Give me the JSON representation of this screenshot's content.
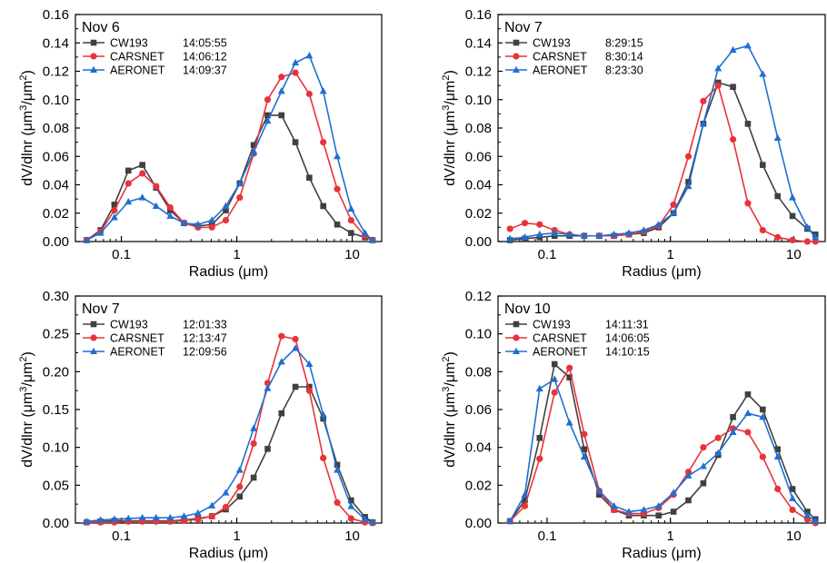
{
  "chart_data": [
    {
      "type": "line",
      "panel_label": "Nov 6",
      "xlabel": "Radius (μm)",
      "ylabel_main": "dV/dlnr (μm",
      "ylabel_sup1": "3",
      "ylabel_mid": "/μm",
      "ylabel_sup2": "2",
      "ylabel_end": ")",
      "xscale": "log",
      "xlim": [
        0.04,
        18
      ],
      "ylim": [
        0,
        0.16
      ],
      "x_ticks": [
        0.1,
        1,
        10
      ],
      "x_tick_labels": [
        "0.1",
        "1",
        "10"
      ],
      "y_ticks": [
        0,
        0.02,
        0.04,
        0.06,
        0.08,
        0.1,
        0.12,
        0.14,
        0.16
      ],
      "y_tick_labels": [
        "0.00",
        "0.02",
        "0.04",
        "0.06",
        "0.08",
        "0.10",
        "0.12",
        "0.14",
        "0.16"
      ],
      "legend_position": "top-left",
      "x": [
        0.05,
        0.066,
        0.087,
        0.115,
        0.152,
        0.2,
        0.265,
        0.349,
        0.461,
        0.609,
        0.803,
        1.06,
        1.4,
        1.85,
        2.44,
        3.22,
        4.25,
        5.61,
        7.41,
        9.78,
        12.9,
        15
      ],
      "series": [
        {
          "name": "CW193",
          "time": "14:05:55",
          "color": "#404040",
          "marker": "square",
          "values": [
            0.001,
            0.008,
            0.026,
            0.05,
            0.054,
            0.038,
            0.022,
            0.013,
            0.011,
            0.012,
            0.022,
            0.041,
            0.068,
            0.089,
            0.089,
            0.07,
            0.045,
            0.025,
            0.012,
            0.006,
            0.003,
            0.001
          ]
        },
        {
          "name": "CARSNET",
          "time": "14:06:12",
          "color": "#e8333a",
          "marker": "circle",
          "values": [
            0.001,
            0.007,
            0.022,
            0.041,
            0.048,
            0.039,
            0.024,
            0.013,
            0.01,
            0.01,
            0.015,
            0.031,
            0.062,
            0.1,
            0.116,
            0.119,
            0.104,
            0.07,
            0.037,
            0.015,
            0.004,
            0.001
          ]
        },
        {
          "name": "AERONET",
          "time": "14:09:37",
          "color": "#1f6fd1",
          "marker": "triangle",
          "values": [
            0.001,
            0.006,
            0.017,
            0.028,
            0.031,
            0.025,
            0.018,
            0.013,
            0.012,
            0.015,
            0.025,
            0.041,
            0.063,
            0.085,
            0.106,
            0.126,
            0.131,
            0.106,
            0.06,
            0.023,
            0.006,
            0.001
          ]
        }
      ]
    },
    {
      "type": "line",
      "panel_label": "Nov 7",
      "xlabel": "Radius (μm)",
      "ylabel_main": "dV/dlnr (μm",
      "ylabel_sup1": "3",
      "ylabel_mid": "/μm",
      "ylabel_sup2": "2",
      "ylabel_end": ")",
      "xscale": "log",
      "xlim": [
        0.04,
        18
      ],
      "ylim": [
        0,
        0.16
      ],
      "x_ticks": [
        0.1,
        1,
        10
      ],
      "x_tick_labels": [
        "0.1",
        "1",
        "10"
      ],
      "y_ticks": [
        0,
        0.02,
        0.04,
        0.06,
        0.08,
        0.1,
        0.12,
        0.14,
        0.16
      ],
      "y_tick_labels": [
        "0.00",
        "0.02",
        "0.04",
        "0.06",
        "0.08",
        "0.10",
        "0.12",
        "0.14",
        "0.16"
      ],
      "legend_position": "top-left",
      "x": [
        0.05,
        0.066,
        0.087,
        0.115,
        0.152,
        0.2,
        0.265,
        0.349,
        0.461,
        0.609,
        0.803,
        1.06,
        1.4,
        1.85,
        2.44,
        3.22,
        4.25,
        5.61,
        7.41,
        9.78,
        12.9,
        15
      ],
      "series": [
        {
          "name": "CW193",
          "time": "8:29:15",
          "color": "#404040",
          "marker": "square",
          "values": [
            0.001,
            0.002,
            0.003,
            0.004,
            0.004,
            0.004,
            0.004,
            0.004,
            0.005,
            0.006,
            0.01,
            0.02,
            0.042,
            0.083,
            0.112,
            0.109,
            0.083,
            0.054,
            0.032,
            0.018,
            0.009,
            0.005
          ]
        },
        {
          "name": "CARSNET",
          "time": "8:30:14",
          "color": "#e8333a",
          "marker": "circle",
          "values": [
            0.009,
            0.013,
            0.012,
            0.008,
            0.005,
            0.004,
            0.004,
            0.004,
            0.005,
            0.007,
            0.011,
            0.026,
            0.06,
            0.099,
            0.11,
            0.072,
            0.027,
            0.008,
            0.003,
            0.001,
            0.0,
            0.0
          ]
        },
        {
          "name": "AERONET",
          "time": "8:23:30",
          "color": "#1f6fd1",
          "marker": "triangle",
          "values": [
            0.002,
            0.003,
            0.005,
            0.006,
            0.005,
            0.004,
            0.004,
            0.005,
            0.006,
            0.008,
            0.012,
            0.02,
            0.039,
            0.083,
            0.122,
            0.135,
            0.138,
            0.118,
            0.073,
            0.031,
            0.01,
            0.003
          ]
        }
      ]
    },
    {
      "type": "line",
      "panel_label": "Nov 7",
      "xlabel": "Radius (μm)",
      "ylabel_main": "dV/dlnr (μm",
      "ylabel_sup1": "3",
      "ylabel_mid": "/μm",
      "ylabel_sup2": "2",
      "ylabel_end": ")",
      "xscale": "log",
      "xlim": [
        0.04,
        18
      ],
      "ylim": [
        0,
        0.3
      ],
      "x_ticks": [
        0.1,
        1,
        10
      ],
      "x_tick_labels": [
        "0.1",
        "1",
        "10"
      ],
      "y_ticks": [
        0,
        0.05,
        0.1,
        0.15,
        0.2,
        0.25,
        0.3
      ],
      "y_tick_labels": [
        "0.00",
        "0.05",
        "0.10",
        "0.15",
        "0.20",
        "0.25",
        "0.30"
      ],
      "legend_position": "top-left",
      "x": [
        0.05,
        0.066,
        0.087,
        0.115,
        0.152,
        0.2,
        0.265,
        0.349,
        0.461,
        0.609,
        0.803,
        1.06,
        1.4,
        1.85,
        2.44,
        3.22,
        4.25,
        5.61,
        7.41,
        9.78,
        12.9,
        15
      ],
      "series": [
        {
          "name": "CW193",
          "time": "12:01:33",
          "color": "#404040",
          "marker": "square",
          "values": [
            0.001,
            0.002,
            0.003,
            0.003,
            0.003,
            0.003,
            0.003,
            0.004,
            0.006,
            0.009,
            0.018,
            0.035,
            0.06,
            0.098,
            0.145,
            0.18,
            0.18,
            0.138,
            0.077,
            0.03,
            0.008,
            0.001
          ]
        },
        {
          "name": "CARSNET",
          "time": "12:13:47",
          "color": "#e8333a",
          "marker": "circle",
          "values": [
            0.001,
            0.001,
            0.001,
            0.002,
            0.002,
            0.002,
            0.002,
            0.003,
            0.005,
            0.009,
            0.021,
            0.048,
            0.105,
            0.185,
            0.247,
            0.243,
            0.175,
            0.086,
            0.027,
            0.006,
            0.001,
            0.0
          ]
        },
        {
          "name": "AERONET",
          "time": "12:09:56",
          "color": "#1f6fd1",
          "marker": "triangle",
          "values": [
            0.002,
            0.004,
            0.005,
            0.006,
            0.007,
            0.007,
            0.007,
            0.009,
            0.013,
            0.023,
            0.04,
            0.07,
            0.125,
            0.178,
            0.213,
            0.231,
            0.21,
            0.143,
            0.07,
            0.022,
            0.005,
            0.001
          ]
        }
      ]
    },
    {
      "type": "line",
      "panel_label": "Nov 10",
      "xlabel": "Radius (μm)",
      "ylabel_main": "dV/dlnr (μm",
      "ylabel_sup1": "3",
      "ylabel_mid": "/μm",
      "ylabel_sup2": "2",
      "ylabel_end": ")",
      "xscale": "log",
      "xlim": [
        0.04,
        18
      ],
      "ylim": [
        0,
        0.12
      ],
      "x_ticks": [
        0.1,
        1,
        10
      ],
      "x_tick_labels": [
        "0.1",
        "1",
        "10"
      ],
      "y_ticks": [
        0,
        0.02,
        0.04,
        0.06,
        0.08,
        0.1,
        0.12
      ],
      "y_tick_labels": [
        "0.00",
        "0.02",
        "0.04",
        "0.06",
        "0.08",
        "0.10",
        "0.12"
      ],
      "legend_position": "top-left",
      "x": [
        0.05,
        0.066,
        0.087,
        0.115,
        0.152,
        0.2,
        0.265,
        0.349,
        0.461,
        0.609,
        0.803,
        1.06,
        1.4,
        1.85,
        2.44,
        3.22,
        4.25,
        5.61,
        7.41,
        9.78,
        12.9,
        15
      ],
      "series": [
        {
          "name": "CW193",
          "time": "14:11:31",
          "color": "#404040",
          "marker": "square",
          "values": [
            0.001,
            0.012,
            0.045,
            0.084,
            0.077,
            0.039,
            0.015,
            0.007,
            0.004,
            0.004,
            0.004,
            0.006,
            0.012,
            0.021,
            0.036,
            0.056,
            0.068,
            0.06,
            0.039,
            0.018,
            0.006,
            0.002
          ]
        },
        {
          "name": "CARSNET",
          "time": "14:06:05",
          "color": "#e8333a",
          "marker": "circle",
          "values": [
            0.001,
            0.009,
            0.034,
            0.069,
            0.082,
            0.047,
            0.017,
            0.007,
            0.005,
            0.005,
            0.008,
            0.015,
            0.027,
            0.04,
            0.045,
            0.05,
            0.048,
            0.035,
            0.018,
            0.007,
            0.002,
            0.0
          ]
        },
        {
          "name": "AERONET",
          "time": "14:10:15",
          "color": "#1f6fd1",
          "marker": "triangle",
          "values": [
            0.001,
            0.015,
            0.071,
            0.076,
            0.053,
            0.035,
            0.017,
            0.009,
            0.006,
            0.007,
            0.009,
            0.016,
            0.025,
            0.03,
            0.037,
            0.048,
            0.058,
            0.056,
            0.035,
            0.013,
            0.004,
            0.001
          ]
        }
      ]
    }
  ]
}
